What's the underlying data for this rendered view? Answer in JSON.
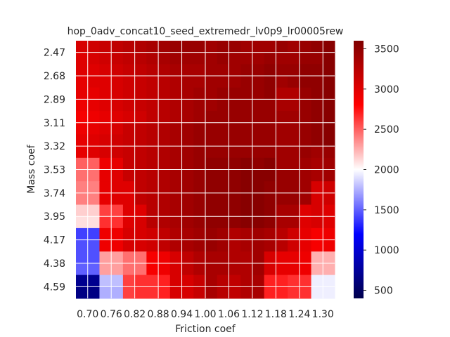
{
  "chart_data": {
    "type": "heatmap",
    "title": "hop_0adv_concat10_seed_extremedr_lv0p9_lr00005rew",
    "xlabel": "Friction coef",
    "ylabel": "Mass coef",
    "x_tick_labels": [
      "0.70",
      "0.76",
      "0.82",
      "0.88",
      "0.94",
      "1.00",
      "1.06",
      "1.12",
      "1.18",
      "1.24",
      "1.30"
    ],
    "y_tick_labels": [
      "2.47",
      "2.68",
      "2.89",
      "3.11",
      "3.32",
      "3.53",
      "3.74",
      "3.95",
      "4.17",
      "4.38",
      "4.59"
    ],
    "colorbar_ticks": [
      500,
      1000,
      1500,
      2000,
      2500,
      3000,
      3500
    ],
    "vmin": 400,
    "vcenter": 2000,
    "vmax": 3600,
    "colormap": "seismic",
    "grid": true,
    "colors": {
      "low": "#00004c",
      "mid_low": "#0000ff",
      "center": "#ffffff",
      "mid_high": "#ff0000",
      "high": "#800000"
    },
    "values": [
      [
        3050,
        3100,
        3150,
        3200,
        3250,
        3300,
        3350,
        3400,
        3450,
        3450,
        3450,
        3400,
        3450,
        3450,
        3400,
        3400,
        3400,
        3450,
        3400,
        3450,
        3500,
        3550
      ],
      [
        3000,
        3050,
        3100,
        3150,
        3200,
        3250,
        3300,
        3350,
        3400,
        3400,
        3400,
        3400,
        3450,
        3400,
        3400,
        3400,
        3450,
        3400,
        3400,
        3450,
        3450,
        3550
      ],
      [
        3000,
        3000,
        3050,
        3100,
        3150,
        3200,
        3250,
        3300,
        3350,
        3350,
        3350,
        3400,
        3400,
        3400,
        3450,
        3450,
        3500,
        3450,
        3450,
        3500,
        3500,
        3550
      ],
      [
        2950,
        3000,
        3000,
        3050,
        3100,
        3150,
        3200,
        3250,
        3300,
        3350,
        3350,
        3400,
        3400,
        3400,
        3450,
        3450,
        3500,
        3400,
        3450,
        3500,
        3500,
        3550
      ],
      [
        2950,
        2950,
        3000,
        3050,
        3100,
        3150,
        3200,
        3250,
        3300,
        3350,
        3400,
        3400,
        3450,
        3450,
        3450,
        3450,
        3500,
        3300,
        3300,
        3450,
        3500,
        3550
      ],
      [
        2900,
        2950,
        3000,
        3050,
        3100,
        3150,
        3200,
        3250,
        3300,
        3350,
        3400,
        3400,
        3450,
        3450,
        3450,
        3450,
        3450,
        3350,
        3350,
        3450,
        3500,
        3550
      ],
      [
        2850,
        2900,
        2950,
        3000,
        3050,
        3100,
        3200,
        3250,
        3300,
        3350,
        3400,
        3450,
        3450,
        3450,
        3450,
        3450,
        3450,
        3400,
        3400,
        3450,
        3500,
        3550
      ],
      [
        2900,
        2950,
        3000,
        3050,
        3150,
        3200,
        3250,
        3300,
        3350,
        3400,
        3450,
        3450,
        3450,
        3450,
        3450,
        3450,
        3450,
        3400,
        3400,
        3450,
        3500,
        3550
      ],
      [
        2950,
        3000,
        3050,
        3100,
        3150,
        3200,
        3250,
        3300,
        3350,
        3400,
        3450,
        3450,
        3450,
        3450,
        3450,
        3450,
        3450,
        3400,
        3400,
        3450,
        3500,
        3550
      ],
      [
        2950,
        3000,
        3050,
        3100,
        3150,
        3200,
        3250,
        3300,
        3350,
        3400,
        3450,
        3450,
        3450,
        3450,
        3450,
        3450,
        3450,
        3400,
        3400,
        3450,
        3400,
        3450
      ],
      [
        2500,
        2500,
        2900,
        2950,
        3150,
        3200,
        3250,
        3300,
        3350,
        3400,
        3450,
        3500,
        3500,
        3500,
        3550,
        3500,
        3550,
        3400,
        3400,
        3400,
        3350,
        3400
      ],
      [
        2450,
        2450,
        2950,
        3000,
        3150,
        3200,
        3250,
        3300,
        3350,
        3400,
        3450,
        3500,
        3500,
        3500,
        3550,
        3550,
        3550,
        3450,
        3450,
        3400,
        3350,
        3400
      ],
      [
        2400,
        2400,
        2950,
        3000,
        3000,
        3200,
        3250,
        3300,
        3350,
        3400,
        3450,
        3500,
        3500,
        3500,
        3550,
        3550,
        3500,
        3450,
        3450,
        3400,
        3050,
        3100
      ],
      [
        2400,
        2400,
        2950,
        3000,
        3000,
        3200,
        3250,
        3300,
        3350,
        3400,
        3450,
        3500,
        3500,
        3500,
        3550,
        3550,
        3500,
        3450,
        3450,
        3400,
        3050,
        3100
      ],
      [
        2150,
        2150,
        2600,
        2600,
        3000,
        3000,
        3250,
        3300,
        3350,
        3400,
        3450,
        3500,
        3500,
        3500,
        3550,
        3550,
        3500,
        3350,
        3350,
        3000,
        3050,
        3000
      ],
      [
        2100,
        2100,
        2650,
        2650,
        3000,
        3050,
        3250,
        3300,
        3350,
        3400,
        3450,
        3500,
        3500,
        3500,
        3550,
        3550,
        3500,
        3350,
        3350,
        3000,
        3050,
        3000
      ],
      [
        1400,
        1400,
        2900,
        2900,
        3050,
        3050,
        3100,
        3200,
        3300,
        3350,
        3400,
        3450,
        3400,
        3300,
        3350,
        3400,
        3350,
        3250,
        3100,
        2950,
        2850,
        2900
      ],
      [
        1450,
        1450,
        2900,
        2900,
        3050,
        3050,
        3100,
        3200,
        3300,
        3350,
        3400,
        3450,
        3400,
        3300,
        3350,
        3400,
        3350,
        3250,
        3100,
        2950,
        2850,
        2900
      ],
      [
        1450,
        1450,
        2300,
        2300,
        2450,
        2450,
        2850,
        2900,
        3050,
        3200,
        3300,
        3350,
        3350,
        3300,
        3300,
        3400,
        3050,
        2950,
        2950,
        2900,
        2250,
        2250
      ],
      [
        1500,
        1500,
        2300,
        2300,
        2450,
        2450,
        2850,
        2900,
        3050,
        3200,
        3300,
        3350,
        3350,
        3300,
        3300,
        3400,
        3050,
        2950,
        2950,
        2900,
        2250,
        2250
      ],
      [
        700,
        700,
        1800,
        1800,
        2600,
        2650,
        2650,
        2700,
        3050,
        3050,
        3150,
        3350,
        3250,
        3200,
        3300,
        3350,
        2700,
        2700,
        2650,
        2650,
        1950,
        1950
      ],
      [
        650,
        650,
        1750,
        1750,
        2600,
        2650,
        2650,
        2700,
        3050,
        3050,
        3150,
        3350,
        3250,
        3200,
        3300,
        3350,
        2700,
        2700,
        2650,
        2650,
        1950,
        1950
      ]
    ]
  }
}
